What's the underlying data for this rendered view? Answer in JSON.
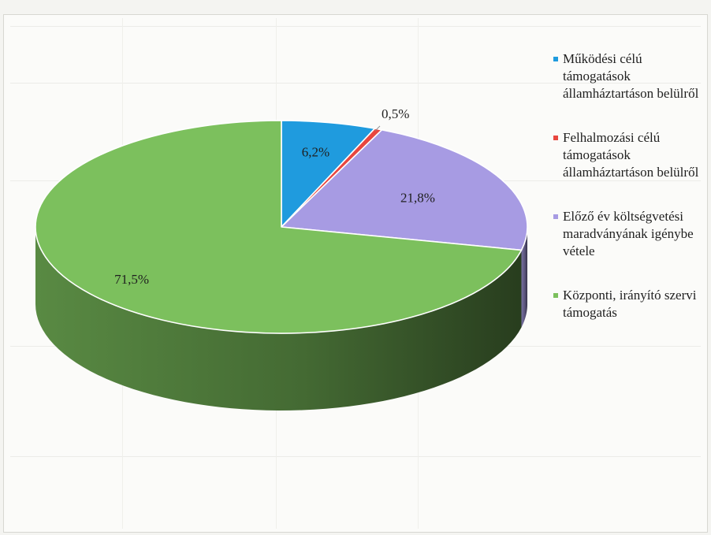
{
  "chart_data": {
    "type": "pie",
    "title": "",
    "slices": [
      {
        "label": "Működési célú támogatások államháztartáson belülről",
        "value": 6.2,
        "display": "6,2%",
        "color": "#1f9bde"
      },
      {
        "label": "Felhalmozási célú támogatások államháztartáson belülről",
        "value": 0.5,
        "display": "0,5%",
        "color": "#e8463f"
      },
      {
        "label": "Előző év költségvetési maradványának igénybe vétele",
        "value": 21.8,
        "display": "21,8%",
        "color": "#a79be3"
      },
      {
        "label": "Központi, irányító szervi támogatás",
        "value": 71.5,
        "display": "71,5%",
        "color": "#7cc05d"
      }
    ],
    "legend": {
      "position": "right"
    },
    "style": "3d-pie",
    "start": "top",
    "direction": "clockwise"
  }
}
